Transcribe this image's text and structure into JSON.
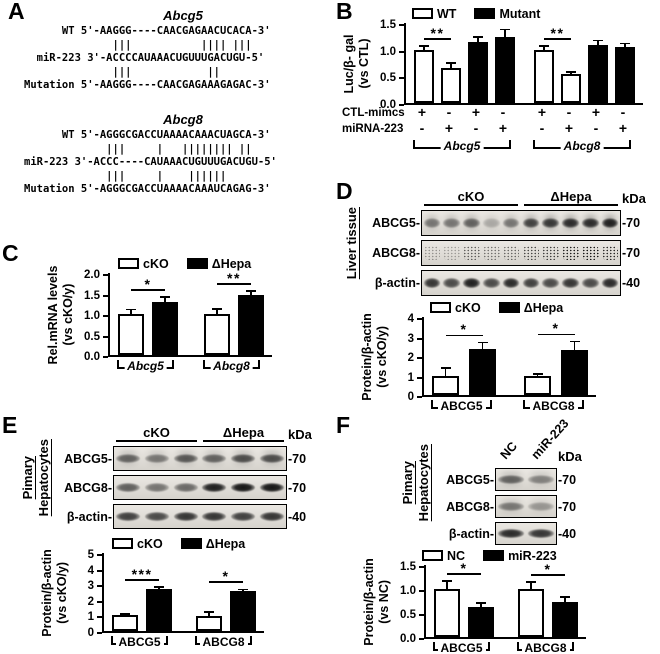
{
  "panels": {
    "A": {
      "label": "A",
      "blocks": [
        {
          "title": "Abcg5",
          "lines": [
            "      WT 5'-AAGGG----CAACGAGAACUCACA-3'",
            "              |||           |||| |||",
            "  miR-223 3'-ACCCCAUAAACUGUUUGACUGU-5'",
            "              |||            ||",
            "Mutation 5'-AAGGG----CAACGAGAAAGAGAC-3'"
          ]
        },
        {
          "title": "Abcg8",
          "lines": [
            "      WT 5'-AGGGCGACCUAAAACAAACUAGCA-3'",
            "             |||     |   |||||||| ||",
            "miR-223 3'-ACCC----CAUAAACUGUUUGACUGU-5'",
            "             |||     |    ||||||",
            "Mutation 5'-AGGGCGACCUAAAACAAAUCAGAG-3'"
          ]
        }
      ]
    },
    "B": {
      "label": "B"
    },
    "C": {
      "label": "C"
    },
    "D": {
      "label": "D"
    },
    "E": {
      "label": "E"
    },
    "F": {
      "label": "F"
    }
  },
  "chart_data": [
    {
      "id": "B",
      "type": "bar",
      "ylabel": [
        "Luc/β- gal",
        "(vs CTL)"
      ],
      "yticks": [
        "0.0",
        "0.5",
        "1.0",
        "1.5"
      ],
      "ymax": 1.5,
      "legend": [
        {
          "label": "WT",
          "fill": "#ffffff"
        },
        {
          "label": "Mutant",
          "fill": "#000000"
        }
      ],
      "bars": [
        {
          "v": 1.0,
          "e": 0.05,
          "fill": "#ffffff"
        },
        {
          "v": 0.65,
          "e": 0.09,
          "fill": "#ffffff"
        },
        {
          "v": 1.15,
          "e": 0.07,
          "fill": "#000000"
        },
        {
          "v": 1.23,
          "e": 0.13,
          "fill": "#000000"
        },
        {
          "v": 1.0,
          "e": 0.05,
          "fill": "#ffffff"
        },
        {
          "v": 0.54,
          "e": 0.03,
          "fill": "#ffffff"
        },
        {
          "v": 1.08,
          "e": 0.08,
          "fill": "#000000"
        },
        {
          "v": 1.05,
          "e": 0.05,
          "fill": "#000000"
        }
      ],
      "sig": [
        {
          "a": 0,
          "b": 1,
          "label": "**"
        },
        {
          "a": 4,
          "b": 5,
          "label": "**"
        }
      ],
      "xrows": [
        {
          "label": "CTL-mimcs",
          "values": [
            "+",
            "-",
            "+",
            "-",
            "+",
            "-",
            "+",
            "-"
          ]
        },
        {
          "label": "miRNA-223",
          "values": [
            "-",
            "+",
            "-",
            "+",
            "-",
            "+",
            "-",
            "+"
          ]
        }
      ],
      "groups": [
        {
          "label": "Abcg5",
          "from": 0,
          "to": 3
        },
        {
          "label": "Abcg8",
          "from": 4,
          "to": 7
        }
      ]
    },
    {
      "id": "C",
      "type": "bar",
      "ylabel": [
        "Rel.mRNA levels",
        "(vs cKO/y)"
      ],
      "yticks": [
        "0.0",
        "0.5",
        "1.0",
        "1.5",
        "2.0"
      ],
      "ymax": 2.0,
      "legend": [
        {
          "label": "cKO",
          "fill": "#ffffff"
        },
        {
          "label": "ΔHepa",
          "fill": "#000000"
        }
      ],
      "bars": [
        {
          "v": 1.0,
          "e": 0.09,
          "fill": "#ffffff"
        },
        {
          "v": 1.3,
          "e": 0.09,
          "fill": "#000000"
        },
        {
          "v": 1.0,
          "e": 0.11,
          "fill": "#ffffff"
        },
        {
          "v": 1.47,
          "e": 0.07,
          "fill": "#000000"
        }
      ],
      "sig": [
        {
          "a": 0,
          "b": 1,
          "label": "*"
        },
        {
          "a": 2,
          "b": 3,
          "label": "**"
        }
      ],
      "groups": [
        {
          "label": "Abcg5",
          "from": 0,
          "to": 1
        },
        {
          "label": "Abcg8",
          "from": 2,
          "to": 3
        }
      ]
    },
    {
      "id": "D",
      "type": "bar",
      "ylabel": [
        "Protein/β-actin",
        "(vs cKO/y)"
      ],
      "yticks": [
        "0",
        "1",
        "2",
        "3",
        "4"
      ],
      "ymax": 4,
      "legend": [
        {
          "label": "cKO",
          "fill": "#ffffff"
        },
        {
          "label": "ΔHepa",
          "fill": "#000000"
        }
      ],
      "bars": [
        {
          "v": 1.0,
          "e": 0.33,
          "fill": "#ffffff"
        },
        {
          "v": 2.35,
          "e": 0.3,
          "fill": "#000000"
        },
        {
          "v": 0.95,
          "e": 0.1,
          "fill": "#ffffff"
        },
        {
          "v": 2.3,
          "e": 0.4,
          "fill": "#000000"
        }
      ],
      "sig": [
        {
          "a": 0,
          "b": 1,
          "label": "*"
        },
        {
          "a": 2,
          "b": 3,
          "label": "*"
        }
      ],
      "groups": [
        {
          "label": "ABCG5",
          "from": 0,
          "to": 1
        },
        {
          "label": "ABCG8",
          "from": 2,
          "to": 3
        }
      ]
    },
    {
      "id": "E",
      "type": "bar",
      "ylabel": [
        "Protein/β-actin",
        "(vs cKO/y)"
      ],
      "yticks": [
        "0",
        "1",
        "2",
        "3",
        "4",
        "5"
      ],
      "ymax": 5,
      "legend": [
        {
          "label": "cKO",
          "fill": "#ffffff"
        },
        {
          "label": "ΔHepa",
          "fill": "#000000"
        }
      ],
      "bars": [
        {
          "v": 1.0,
          "e": 0.05,
          "fill": "#ffffff"
        },
        {
          "v": 2.7,
          "e": 0.07,
          "fill": "#000000"
        },
        {
          "v": 0.97,
          "e": 0.18,
          "fill": "#ffffff"
        },
        {
          "v": 2.55,
          "e": 0.07,
          "fill": "#000000"
        }
      ],
      "sig": [
        {
          "a": 0,
          "b": 1,
          "label": "***"
        },
        {
          "a": 2,
          "b": 3,
          "label": "*"
        }
      ],
      "groups": [
        {
          "label": "ABCG5",
          "from": 0,
          "to": 1
        },
        {
          "label": "ABCG8",
          "from": 2,
          "to": 3
        }
      ]
    },
    {
      "id": "F",
      "type": "bar",
      "ylabel": [
        "Protein/β-actin",
        "(vs NC)"
      ],
      "yticks": [
        "0.0",
        "0.5",
        "1.0",
        "1.5"
      ],
      "ymax": 1.5,
      "legend": [
        {
          "label": "NC",
          "fill": "#ffffff"
        },
        {
          "label": "miR-223",
          "fill": "#000000"
        }
      ],
      "bars": [
        {
          "v": 1.0,
          "e": 0.15,
          "fill": "#ffffff"
        },
        {
          "v": 0.62,
          "e": 0.07,
          "fill": "#000000"
        },
        {
          "v": 1.0,
          "e": 0.13,
          "fill": "#ffffff"
        },
        {
          "v": 0.72,
          "e": 0.1,
          "fill": "#000000"
        }
      ],
      "sig": [
        {
          "a": 0,
          "b": 1,
          "label": "*"
        },
        {
          "a": 2,
          "b": 3,
          "label": "*"
        }
      ],
      "groups": [
        {
          "label": "ABCG5",
          "from": 0,
          "to": 1
        },
        {
          "label": "ABCG8",
          "from": 2,
          "to": 3
        }
      ]
    }
  ],
  "blots": {
    "D": {
      "side_label": [
        "Liver tissue"
      ],
      "kda_header": "kDa",
      "groups": [
        {
          "label": "cKO",
          "lanes": 5
        },
        {
          "label": "ΔHepa",
          "lanes": 5
        }
      ],
      "rows": [
        {
          "label": "ABCG5-",
          "kda": "-70",
          "style": "smear",
          "lanes": [
            0.5,
            0.5,
            0.6,
            0.25,
            0.5,
            0.75,
            0.8,
            0.85,
            0.85,
            0.9
          ]
        },
        {
          "label": "ABCG8-",
          "kda": "-70",
          "style": "speckle",
          "lanes": [
            0.35,
            0.3,
            0.6,
            0.5,
            0.55,
            0.7,
            0.75,
            0.9,
            0.95,
            0.85
          ]
        },
        {
          "label": "β-actin-",
          "kda": "-40",
          "style": "band",
          "lanes": [
            0.8,
            0.7,
            0.9,
            0.7,
            0.85,
            0.75,
            0.7,
            0.8,
            0.7,
            0.85
          ]
        }
      ]
    },
    "E": {
      "side_label": [
        "Pimary",
        "Hepatocytes"
      ],
      "kda_header": "kDa",
      "groups": [
        {
          "label": "cKO",
          "lanes": 3
        },
        {
          "label": "ΔHepa",
          "lanes": 3
        }
      ],
      "rows": [
        {
          "label": "ABCG5-",
          "kda": "-70",
          "style": "smear",
          "lanes": [
            0.6,
            0.5,
            0.65,
            0.6,
            0.7,
            0.7
          ]
        },
        {
          "label": "ABCG8-",
          "kda": "-70",
          "style": "band",
          "lanes": [
            0.6,
            0.5,
            0.55,
            0.9,
            0.95,
            0.95
          ]
        },
        {
          "label": "β-actin-",
          "kda": "-40",
          "style": "band",
          "lanes": [
            0.75,
            0.7,
            0.8,
            0.8,
            0.75,
            0.8
          ]
        }
      ]
    },
    "F": {
      "side_label": [
        "Pimary",
        "Hepatocytes"
      ],
      "kda_header": "kDa",
      "lane_labels": [
        "NC",
        "miR-223"
      ],
      "rows": [
        {
          "label": "ABCG5-",
          "kda": "-70",
          "style": "smear",
          "lanes": [
            0.6,
            0.45
          ]
        },
        {
          "label": "ABCG8-",
          "kda": "-70",
          "style": "smear",
          "lanes": [
            0.5,
            0.35
          ]
        },
        {
          "label": "β-actin-",
          "kda": "-40",
          "style": "band",
          "lanes": [
            0.85,
            0.8
          ]
        }
      ]
    }
  },
  "colors": {
    "ink": "#000000",
    "bar_white": "#ffffff",
    "bar_black": "#000000",
    "blot_bg": "#e6e3de"
  }
}
